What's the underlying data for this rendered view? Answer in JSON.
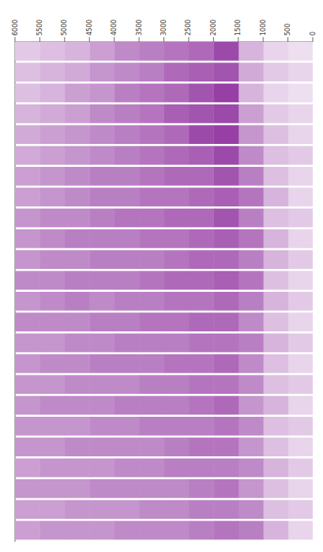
{
  "chart_data": {
    "type": "heatmap",
    "xlim": [
      0,
      6000
    ],
    "ylim": [
      0,
      24
    ],
    "xticks": [
      0,
      500,
      1000,
      1500,
      2000,
      2500,
      3000,
      3500,
      4000,
      4500,
      5000,
      5500,
      6000
    ],
    "tick_labels": "x",
    "color": "#8b2a9b",
    "zlim": [
      0,
      1
    ],
    "x": [
      250,
      750,
      1250,
      1750,
      2250,
      2750,
      3250,
      3750,
      4250,
      4750,
      5250,
      5750
    ],
    "y": [
      0.5,
      1.5,
      2.5,
      3.5,
      4.5,
      5.5,
      6.5,
      7.5,
      8.5,
      9.5,
      10.5,
      11.5,
      12.5,
      13.5,
      14.5,
      15.5,
      16.5,
      17.5,
      18.5,
      19.5,
      20.5,
      21.5,
      22.5,
      23.5
    ],
    "cells": [
      [
        0.15,
        0.2,
        0.35,
        0.85,
        0.7,
        0.65,
        0.6,
        0.55,
        0.45,
        0.35,
        0.3,
        0.25
      ],
      [
        0.2,
        0.25,
        0.4,
        0.8,
        0.75,
        0.7,
        0.6,
        0.55,
        0.5,
        0.4,
        0.35,
        0.3
      ],
      [
        0.15,
        0.2,
        0.35,
        0.9,
        0.8,
        0.7,
        0.65,
        0.6,
        0.5,
        0.45,
        0.35,
        0.3
      ],
      [
        0.2,
        0.25,
        0.45,
        0.85,
        0.8,
        0.75,
        0.65,
        0.6,
        0.55,
        0.45,
        0.4,
        0.35
      ],
      [
        0.2,
        0.3,
        0.5,
        0.9,
        0.85,
        0.7,
        0.65,
        0.6,
        0.55,
        0.5,
        0.45,
        0.4
      ],
      [
        0.25,
        0.3,
        0.55,
        0.85,
        0.75,
        0.7,
        0.65,
        0.6,
        0.55,
        0.5,
        0.45,
        0.4
      ],
      [
        0.2,
        0.3,
        0.6,
        0.8,
        0.7,
        0.7,
        0.65,
        0.6,
        0.6,
        0.55,
        0.5,
        0.45
      ],
      [
        0.2,
        0.35,
        0.65,
        0.75,
        0.7,
        0.65,
        0.65,
        0.6,
        0.6,
        0.55,
        0.5,
        0.45
      ],
      [
        0.25,
        0.3,
        0.6,
        0.8,
        0.7,
        0.7,
        0.65,
        0.65,
        0.6,
        0.55,
        0.55,
        0.5
      ],
      [
        0.2,
        0.35,
        0.65,
        0.75,
        0.7,
        0.65,
        0.65,
        0.6,
        0.6,
        0.6,
        0.55,
        0.5
      ],
      [
        0.25,
        0.35,
        0.6,
        0.7,
        0.7,
        0.65,
        0.6,
        0.6,
        0.6,
        0.55,
        0.55,
        0.5
      ],
      [
        0.2,
        0.3,
        0.65,
        0.75,
        0.7,
        0.7,
        0.65,
        0.6,
        0.6,
        0.6,
        0.55,
        0.55
      ],
      [
        0.25,
        0.35,
        0.6,
        0.7,
        0.65,
        0.65,
        0.6,
        0.6,
        0.55,
        0.6,
        0.55,
        0.5
      ],
      [
        0.2,
        0.3,
        0.55,
        0.7,
        0.7,
        0.65,
        0.65,
        0.6,
        0.6,
        0.55,
        0.55,
        0.55
      ],
      [
        0.25,
        0.35,
        0.6,
        0.65,
        0.65,
        0.6,
        0.6,
        0.6,
        0.55,
        0.55,
        0.5,
        0.5
      ],
      [
        0.2,
        0.3,
        0.55,
        0.7,
        0.65,
        0.65,
        0.6,
        0.6,
        0.6,
        0.55,
        0.55,
        0.5
      ],
      [
        0.25,
        0.3,
        0.55,
        0.65,
        0.65,
        0.6,
        0.6,
        0.55,
        0.55,
        0.55,
        0.5,
        0.5
      ],
      [
        0.2,
        0.35,
        0.5,
        0.7,
        0.65,
        0.6,
        0.6,
        0.6,
        0.55,
        0.55,
        0.55,
        0.5
      ],
      [
        0.25,
        0.3,
        0.55,
        0.65,
        0.6,
        0.6,
        0.6,
        0.55,
        0.55,
        0.5,
        0.5,
        0.5
      ],
      [
        0.2,
        0.3,
        0.5,
        0.65,
        0.65,
        0.6,
        0.55,
        0.55,
        0.55,
        0.55,
        0.5,
        0.5
      ],
      [
        0.25,
        0.35,
        0.55,
        0.6,
        0.6,
        0.6,
        0.55,
        0.55,
        0.5,
        0.5,
        0.5,
        0.45
      ],
      [
        0.2,
        0.3,
        0.5,
        0.65,
        0.6,
        0.55,
        0.55,
        0.55,
        0.55,
        0.5,
        0.5,
        0.5
      ],
      [
        0.25,
        0.3,
        0.55,
        0.6,
        0.6,
        0.55,
        0.55,
        0.5,
        0.5,
        0.5,
        0.45,
        0.45
      ],
      [
        0.2,
        0.35,
        0.6,
        0.65,
        0.6,
        0.55,
        0.55,
        0.55,
        0.5,
        0.5,
        0.5,
        0.45
      ]
    ]
  }
}
